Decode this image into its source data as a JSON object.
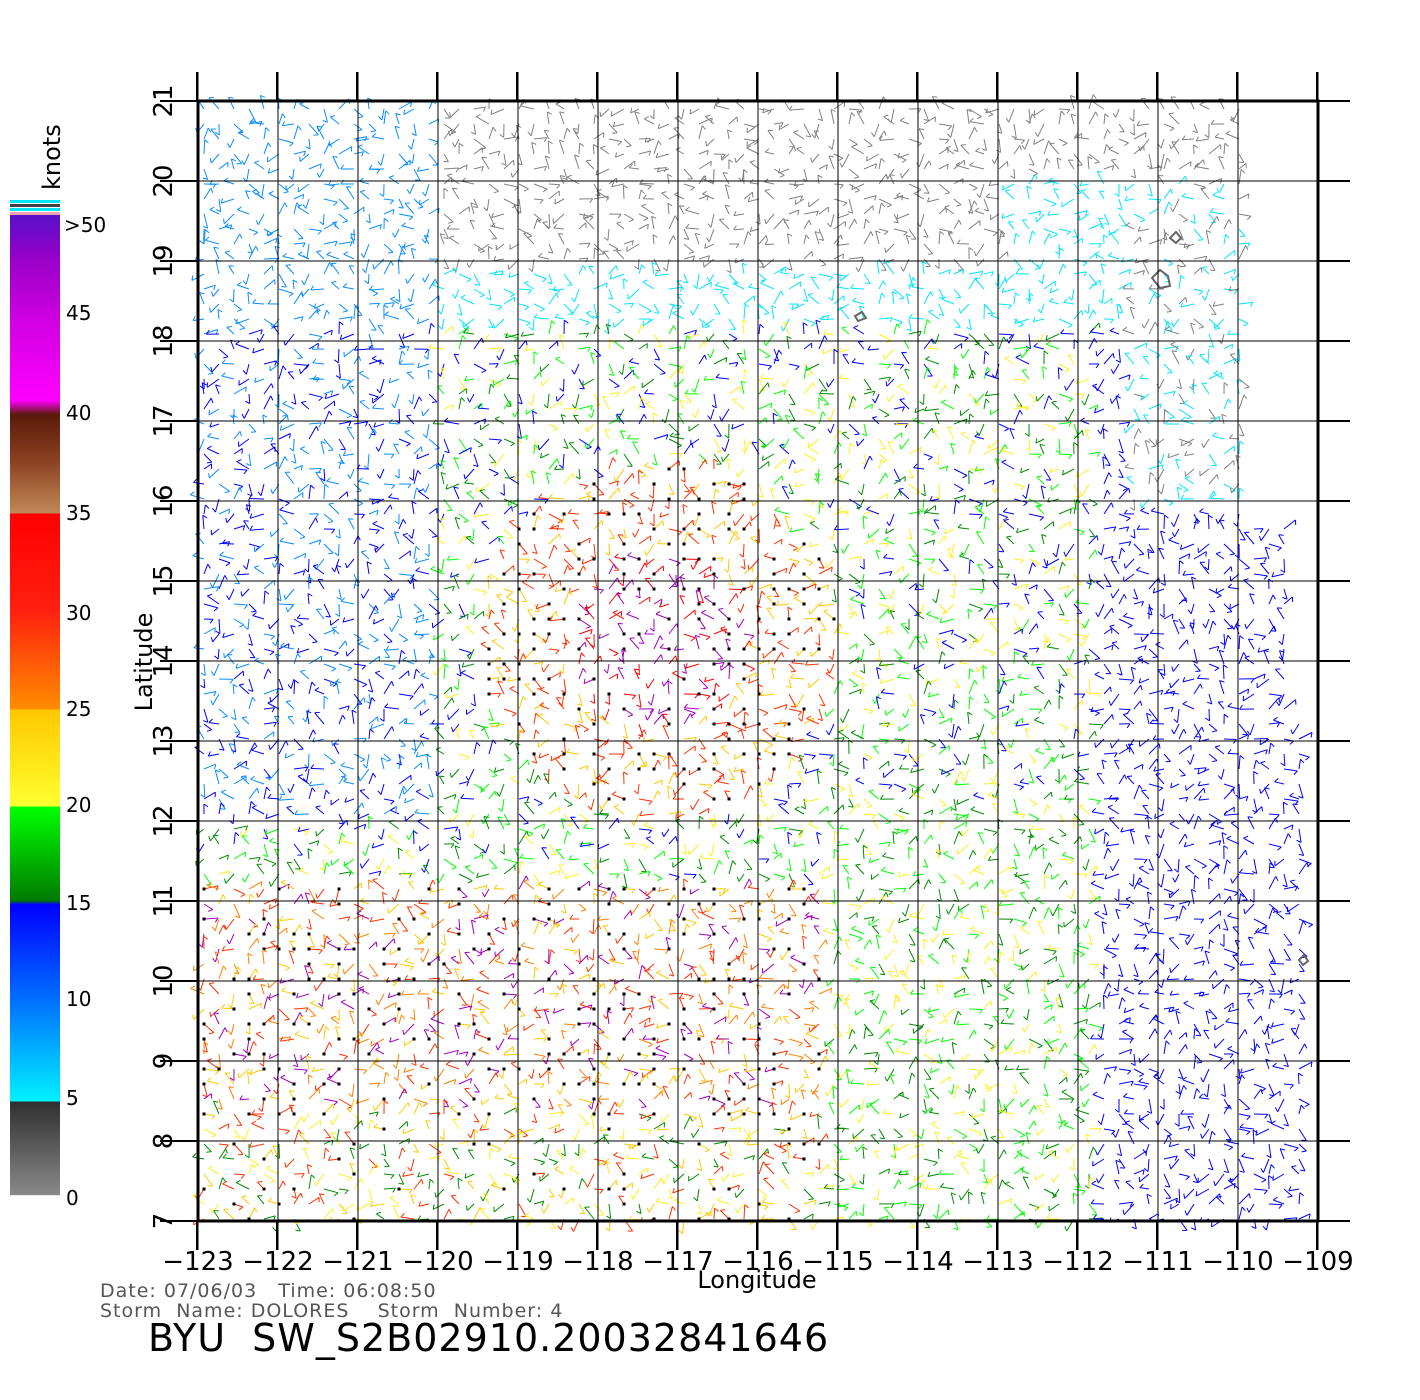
{
  "colorbar": {
    "unit_label": "knots",
    "labels": [
      ">50",
      "45",
      "40",
      "35",
      "30",
      "25",
      "20",
      "15",
      "10",
      "5",
      "0"
    ]
  },
  "axes": {
    "xlabel": "Longitude",
    "ylabel": "Latitude",
    "lon_ticks": [
      "−123",
      "−122",
      "−121",
      "−120",
      "−119",
      "−118",
      "−117",
      "−116",
      "−115",
      "−114",
      "−113",
      "−112",
      "−111",
      "−110",
      "−109"
    ],
    "lat_ticks": [
      "7",
      "8",
      "9",
      "10",
      "11",
      "12",
      "13",
      "14",
      "15",
      "16",
      "17",
      "18",
      "19",
      "20",
      "21"
    ],
    "lon_range": [
      -123,
      -109
    ],
    "lat_range": [
      7,
      21
    ]
  },
  "footer": {
    "date_time": "Date: 07/06/03   Time: 06:08:50",
    "storm": "Storm  Name: DOLORES    Storm  Number: 4",
    "product": "BYU  SW_S2B02910.20032841646"
  },
  "colors": {
    "speed_scale": [
      "#808080",
      "#00e5ff",
      "#0a8cff",
      "#0000ff",
      "#008c00",
      "#00ff00",
      "#ffee20",
      "#ffc800",
      "#ff7f00",
      "#ff3000",
      "#ff0000",
      "#c08050",
      "#6b2a10",
      "#ff00ff",
      "#a000c0",
      "#5a10c8"
    ]
  }
}
